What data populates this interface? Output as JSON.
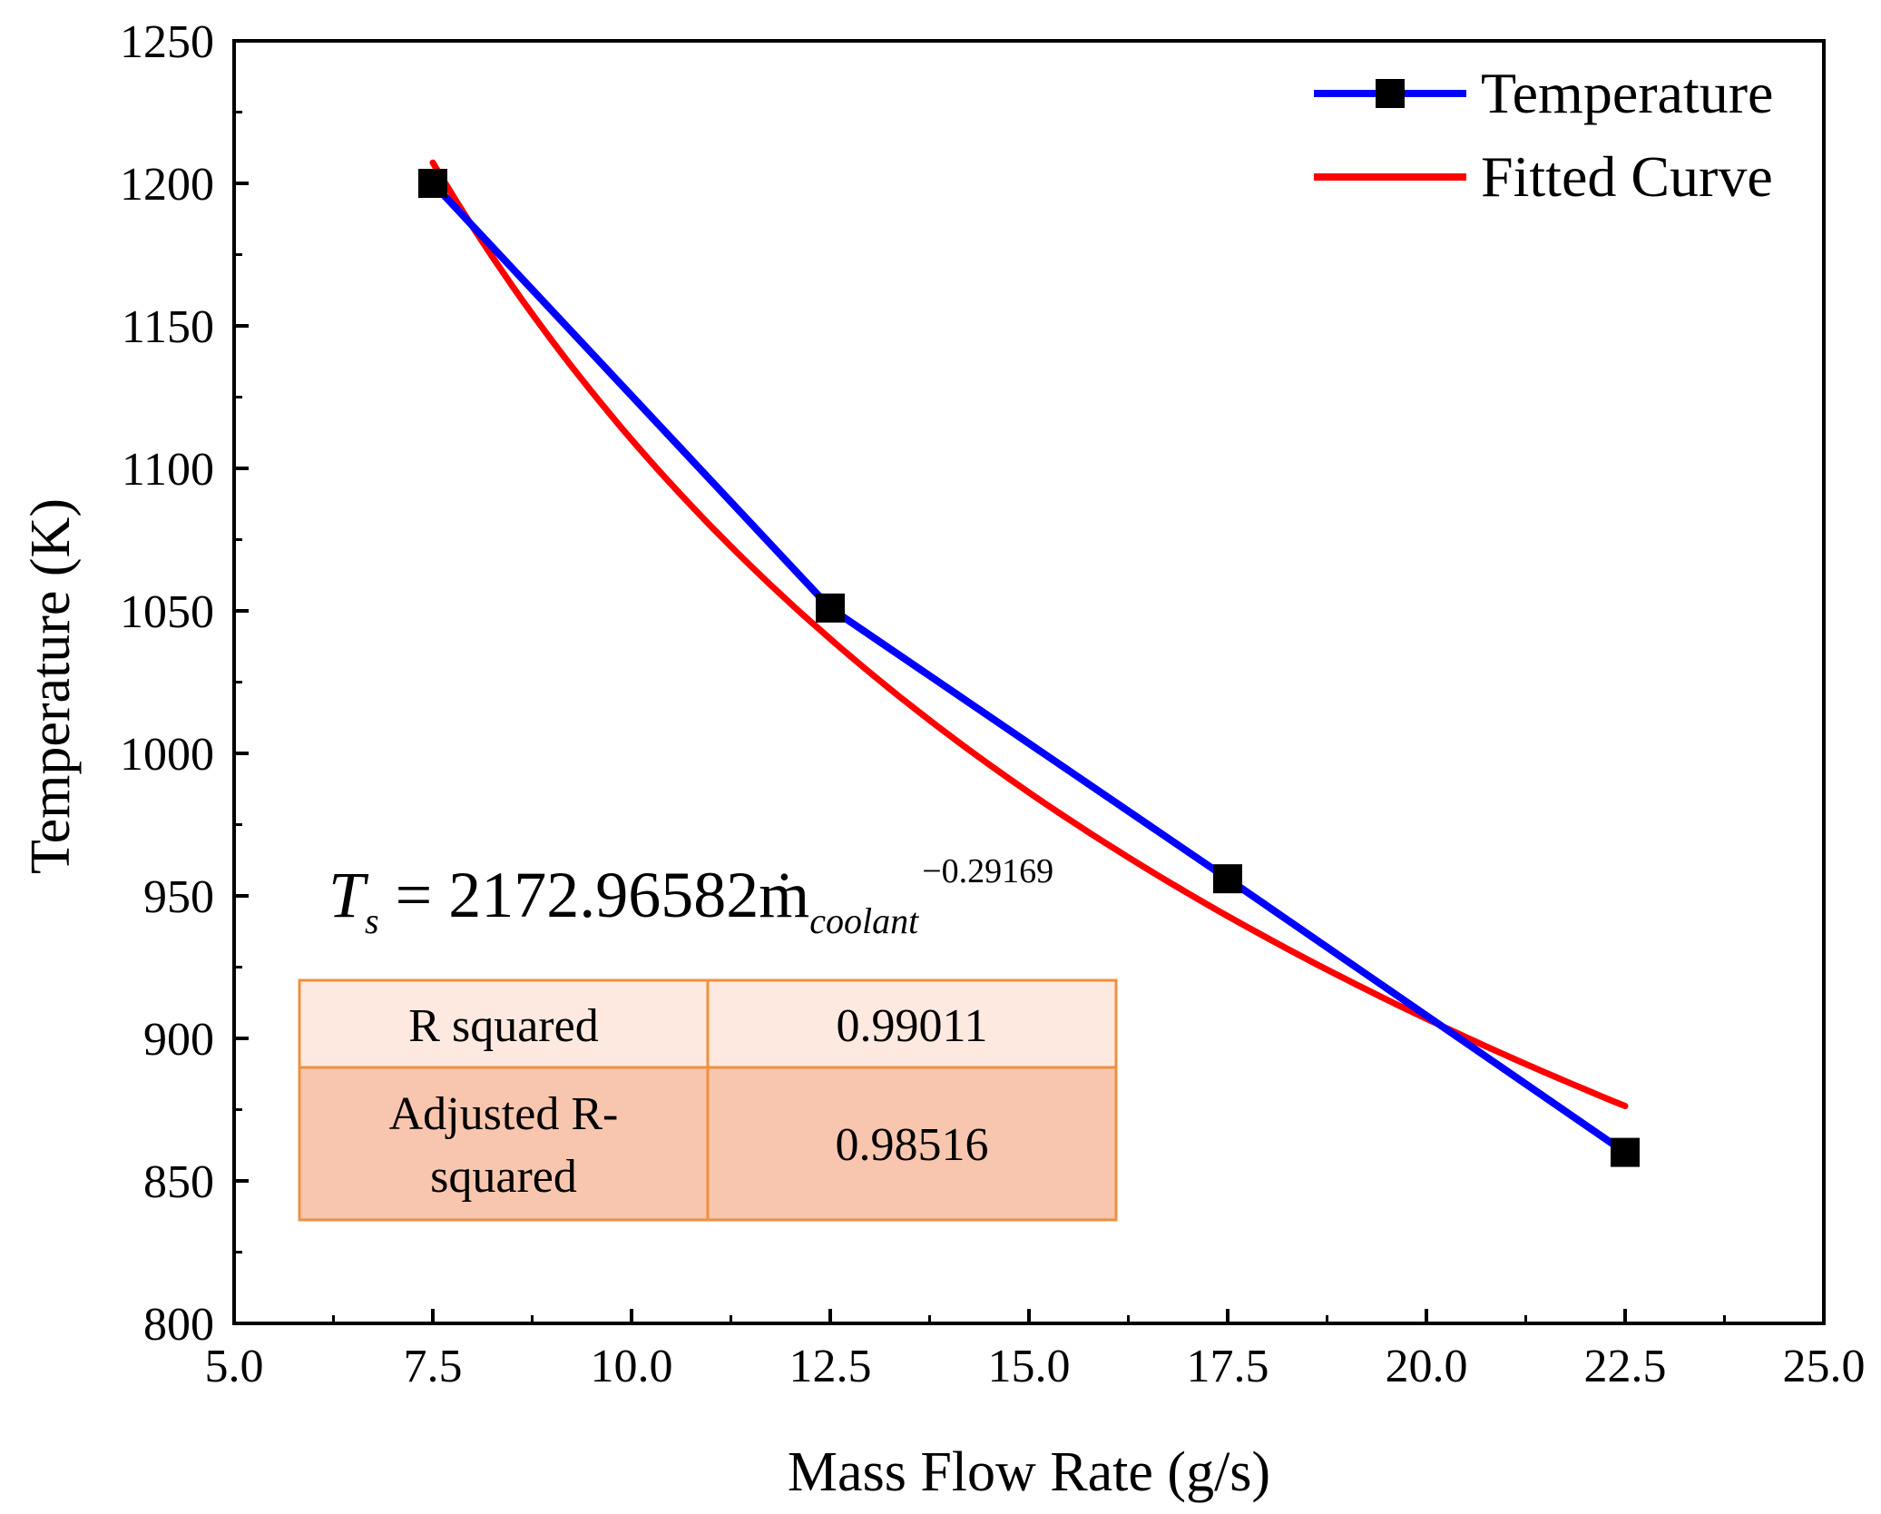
{
  "chart_data": {
    "type": "line",
    "title": "",
    "xlabel": "Mass Flow Rate (g/s)",
    "ylabel": "Temperature (K)",
    "xlim": [
      5.0,
      25.0
    ],
    "ylim": [
      800,
      1250
    ],
    "x_ticks": [
      "5.0",
      "7.5",
      "10.0",
      "12.5",
      "15.0",
      "17.5",
      "20.0",
      "22.5",
      "25.0"
    ],
    "y_ticks": [
      "800",
      "850",
      "900",
      "950",
      "1000",
      "1050",
      "1100",
      "1150",
      "1200",
      "1250"
    ],
    "grid": false,
    "legend_position": "top-right",
    "series": [
      {
        "name": "Temperature",
        "color": "#0000ff",
        "marker": "square",
        "x": [
          7.5,
          12.5,
          17.5,
          22.5
        ],
        "y": [
          1200,
          1051,
          956,
          860
        ]
      },
      {
        "name": "Fitted Curve",
        "color": "#ff0000",
        "marker": "none",
        "model": {
          "coefficient": 2172.96582,
          "exponent": -0.29169
        },
        "x_range": [
          7.5,
          22.5
        ]
      }
    ],
    "annotation": {
      "equation": {
        "lhs": "T",
        "lhs_sub": "s",
        "rhs_main": "= 2172.96582ṁ",
        "rhs_sub": "coolant",
        "rhs_sup": "−0.29169"
      },
      "table": {
        "rows": [
          {
            "label": "R squared",
            "value": "0.99011"
          },
          {
            "label_lines": [
              "Adjusted R-",
              "squared"
            ],
            "value": "0.98516"
          }
        ],
        "border_color": "#f0903c",
        "row_colors": [
          "#fde9df",
          "#f8c6ae"
        ]
      }
    }
  }
}
